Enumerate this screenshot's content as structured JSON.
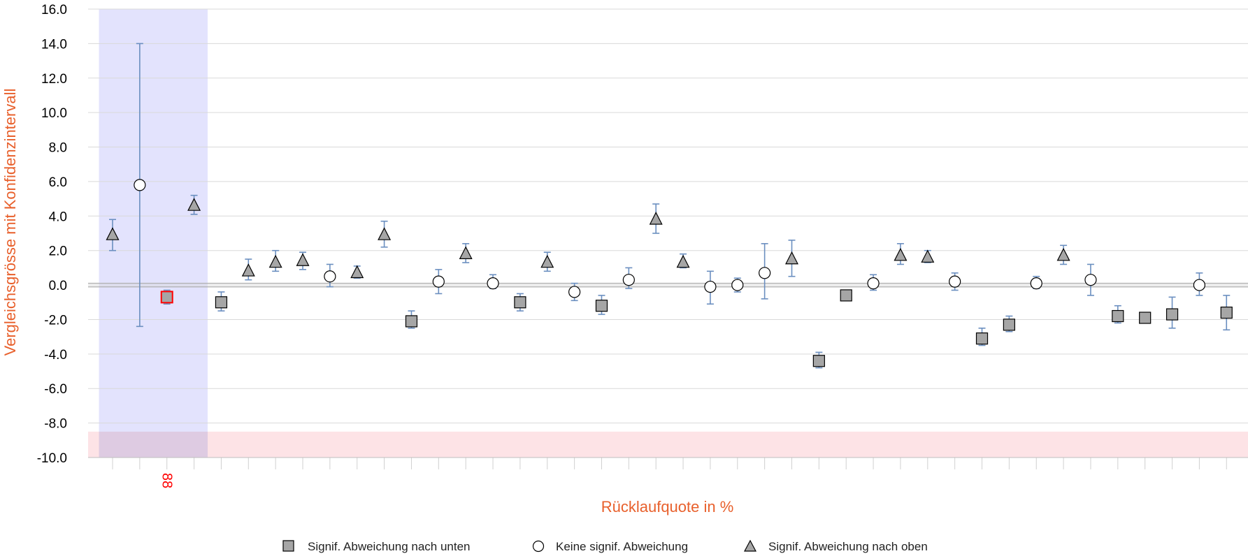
{
  "chart_data": {
    "type": "scatter",
    "title": "",
    "xlabel": "Rücklaufquote in %",
    "ylabel": "Vergleichsgrösse mit Konfidenzintervall",
    "ylim": [
      -10,
      16
    ],
    "yticks": [
      "16.0",
      "14.0",
      "12.0",
      "10.0",
      "8.0",
      "6.0",
      "4.0",
      "2.0",
      "0.0",
      "-2.0",
      "-4.0",
      "-6.0",
      "-8.0",
      "-10.0"
    ],
    "grid": true,
    "highlight_band": {
      "x_start": 0.5,
      "x_end": 4.5,
      "color": "#e3e3fd"
    },
    "lower_band": {
      "y_from": -10,
      "y_to": -8.5,
      "color": "#fde3e6"
    },
    "reference_line": 0,
    "highlighted_point": {
      "index": 3,
      "label": "88",
      "color": "#ff0000"
    },
    "legend": {
      "position": "bottom",
      "entries": [
        {
          "marker": "square",
          "label": "Signif. Abweichung nach unten"
        },
        {
          "marker": "circle",
          "label": "Keine signif. Abweichung"
        },
        {
          "marker": "triangle",
          "label": "Signif. Abweichung nach oben"
        }
      ]
    },
    "points": [
      {
        "x": 1,
        "y": 2.9,
        "lo": 2.0,
        "hi": 3.8,
        "type": "up"
      },
      {
        "x": 2,
        "y": 5.8,
        "lo": -2.4,
        "hi": 14.0,
        "type": "none"
      },
      {
        "x": 3,
        "y": -0.7,
        "lo": -1.1,
        "hi": -0.3,
        "type": "down"
      },
      {
        "x": 4,
        "y": 4.6,
        "lo": 4.1,
        "hi": 5.2,
        "type": "up"
      },
      {
        "x": 5,
        "y": -1.0,
        "lo": -1.5,
        "hi": -0.4,
        "type": "down"
      },
      {
        "x": 6,
        "y": 0.8,
        "lo": 0.3,
        "hi": 1.5,
        "type": "up"
      },
      {
        "x": 7,
        "y": 1.3,
        "lo": 0.8,
        "hi": 2.0,
        "type": "up"
      },
      {
        "x": 8,
        "y": 1.4,
        "lo": 0.9,
        "hi": 1.9,
        "type": "up"
      },
      {
        "x": 9,
        "y": 0.5,
        "lo": -0.1,
        "hi": 1.2,
        "type": "none"
      },
      {
        "x": 10,
        "y": 0.7,
        "lo": 0.4,
        "hi": 1.1,
        "type": "up"
      },
      {
        "x": 11,
        "y": 2.9,
        "lo": 2.2,
        "hi": 3.7,
        "type": "up"
      },
      {
        "x": 12,
        "y": -2.1,
        "lo": -2.5,
        "hi": -1.5,
        "type": "down"
      },
      {
        "x": 13,
        "y": 0.2,
        "lo": -0.5,
        "hi": 0.9,
        "type": "none"
      },
      {
        "x": 14,
        "y": 1.8,
        "lo": 1.3,
        "hi": 2.4,
        "type": "up"
      },
      {
        "x": 15,
        "y": 0.1,
        "lo": -0.2,
        "hi": 0.6,
        "type": "none"
      },
      {
        "x": 16,
        "y": -1.0,
        "lo": -1.5,
        "hi": -0.5,
        "type": "down"
      },
      {
        "x": 17,
        "y": 1.3,
        "lo": 0.8,
        "hi": 1.9,
        "type": "up"
      },
      {
        "x": 18,
        "y": -0.4,
        "lo": -0.9,
        "hi": 0.1,
        "type": "none"
      },
      {
        "x": 19,
        "y": -1.2,
        "lo": -1.7,
        "hi": -0.6,
        "type": "down"
      },
      {
        "x": 20,
        "y": 0.3,
        "lo": -0.2,
        "hi": 1.0,
        "type": "none"
      },
      {
        "x": 21,
        "y": 3.8,
        "lo": 3.0,
        "hi": 4.7,
        "type": "up"
      },
      {
        "x": 22,
        "y": 1.3,
        "lo": 1.0,
        "hi": 1.8,
        "type": "up"
      },
      {
        "x": 23,
        "y": -0.1,
        "lo": -1.1,
        "hi": 0.8,
        "type": "none"
      },
      {
        "x": 24,
        "y": 0.0,
        "lo": -0.4,
        "hi": 0.4,
        "type": "none"
      },
      {
        "x": 25,
        "y": 0.7,
        "lo": -0.8,
        "hi": 2.4,
        "type": "none"
      },
      {
        "x": 26,
        "y": 1.5,
        "lo": 0.5,
        "hi": 2.6,
        "type": "up"
      },
      {
        "x": 27,
        "y": -4.4,
        "lo": -4.8,
        "hi": -3.9,
        "type": "down"
      },
      {
        "x": 28,
        "y": -0.6,
        "lo": -0.8,
        "hi": -0.3,
        "type": "down"
      },
      {
        "x": 29,
        "y": 0.1,
        "lo": -0.3,
        "hi": 0.6,
        "type": "none"
      },
      {
        "x": 30,
        "y": 1.7,
        "lo": 1.2,
        "hi": 2.4,
        "type": "up"
      },
      {
        "x": 31,
        "y": 1.6,
        "lo": 1.3,
        "hi": 2.0,
        "type": "up"
      },
      {
        "x": 32,
        "y": 0.2,
        "lo": -0.3,
        "hi": 0.7,
        "type": "none"
      },
      {
        "x": 33,
        "y": -3.1,
        "lo": -3.5,
        "hi": -2.5,
        "type": "down"
      },
      {
        "x": 34,
        "y": -2.3,
        "lo": -2.7,
        "hi": -1.8,
        "type": "down"
      },
      {
        "x": 35,
        "y": 0.1,
        "lo": -0.2,
        "hi": 0.5,
        "type": "none"
      },
      {
        "x": 36,
        "y": 1.7,
        "lo": 1.2,
        "hi": 2.3,
        "type": "up"
      },
      {
        "x": 37,
        "y": 0.3,
        "lo": -0.6,
        "hi": 1.2,
        "type": "none"
      },
      {
        "x": 38,
        "y": -1.8,
        "lo": -2.2,
        "hi": -1.2,
        "type": "down"
      },
      {
        "x": 39,
        "y": -1.9,
        "lo": -2.1,
        "hi": -1.6,
        "type": "down"
      },
      {
        "x": 40,
        "y": -1.7,
        "lo": -2.5,
        "hi": -0.7,
        "type": "down"
      },
      {
        "x": 41,
        "y": 0.0,
        "lo": -0.6,
        "hi": 0.7,
        "type": "none"
      },
      {
        "x": 42,
        "y": -1.6,
        "lo": -2.6,
        "hi": -0.6,
        "type": "down"
      }
    ]
  }
}
